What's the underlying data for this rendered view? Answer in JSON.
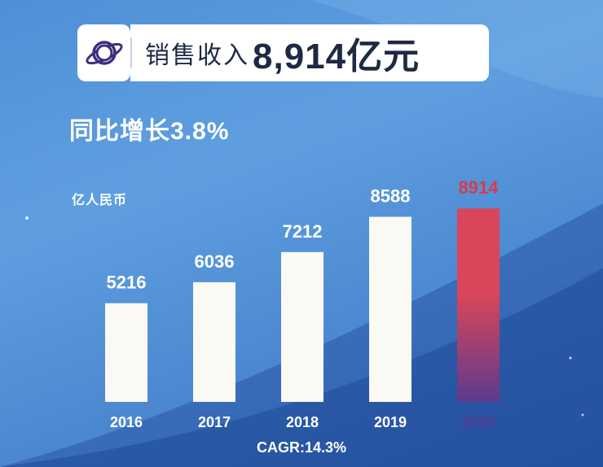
{
  "headline": {
    "label": "销售收入",
    "value": "8,914亿元"
  },
  "growth_text": "同比增长3.8%",
  "unit_label": "亿人民币",
  "cagr_text": "CAGR:14.3%",
  "colors": {
    "bar_default": "#fbf9f4",
    "bar_highlight_top": "#d9455a",
    "bar_highlight_bottom": "#5b3a8e",
    "highlight_text": "#d8394f",
    "default_text": "#ffffff"
  },
  "chart_data": {
    "type": "bar",
    "title": "",
    "xlabel": "",
    "ylabel": "亿人民币",
    "categories": [
      "2016",
      "2017",
      "2018",
      "2019",
      "2020"
    ],
    "values": [
      5216,
      6036,
      7212,
      8588,
      8914
    ],
    "highlight_index": 4,
    "ylim": [
      0,
      10000
    ],
    "grid": false,
    "legend": "none"
  }
}
